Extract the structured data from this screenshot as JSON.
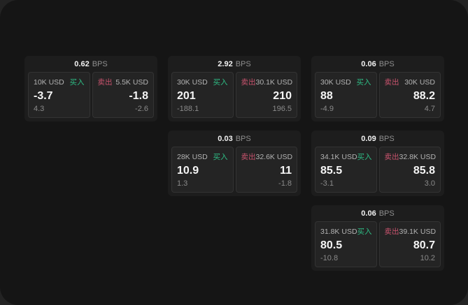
{
  "theme": {
    "buy_color": "#2EBD85",
    "sell_color": "#C9536E",
    "surface_color": "#151515",
    "card_color": "#1D1D1D",
    "tile_color": "#242424"
  },
  "cards": [
    {
      "bps_value": "0.62",
      "bps_label": "BPS",
      "buy": {
        "size": "10K USD",
        "side_label": "买入",
        "price": "-3.7",
        "delta": "4.3"
      },
      "sell": {
        "side_label": "卖出",
        "size": "5.5K USD",
        "price": "-1.8",
        "delta": "-2.6"
      },
      "grid": {
        "col": 0,
        "row": 0
      }
    },
    {
      "bps_value": "2.92",
      "bps_label": "BPS",
      "buy": {
        "size": "30K USD",
        "side_label": "买入",
        "price": "201",
        "delta": "-188.1"
      },
      "sell": {
        "side_label": "卖出",
        "size": "30.1K USD",
        "price": "210",
        "delta": "196.5"
      },
      "grid": {
        "col": 1,
        "row": 0
      }
    },
    {
      "bps_value": "0.06",
      "bps_label": "BPS",
      "buy": {
        "size": "30K USD",
        "side_label": "买入",
        "price": "88",
        "delta": "-4.9"
      },
      "sell": {
        "side_label": "卖出",
        "size": "30K USD",
        "price": "88.2",
        "delta": "4.7"
      },
      "grid": {
        "col": 2,
        "row": 0
      }
    },
    {
      "bps_value": "0.03",
      "bps_label": "BPS",
      "buy": {
        "size": "28K USD",
        "side_label": "买入",
        "price": "10.9",
        "delta": "1.3"
      },
      "sell": {
        "side_label": "卖出",
        "size": "32.6K USD",
        "price": "11",
        "delta": "-1.8"
      },
      "grid": {
        "col": 1,
        "row": 1
      }
    },
    {
      "bps_value": "0.09",
      "bps_label": "BPS",
      "buy": {
        "size": "34.1K USD",
        "side_label": "买入",
        "price": "85.5",
        "delta": "-3.1"
      },
      "sell": {
        "side_label": "卖出",
        "size": "32.8K USD",
        "price": "85.8",
        "delta": "3.0"
      },
      "grid": {
        "col": 2,
        "row": 1
      }
    },
    {
      "bps_value": "0.06",
      "bps_label": "BPS",
      "buy": {
        "size": "31.8K USD",
        "side_label": "买入",
        "price": "80.5",
        "delta": "-10.8"
      },
      "sell": {
        "side_label": "卖出",
        "size": "39.1K USD",
        "price": "80.7",
        "delta": "10.2"
      },
      "grid": {
        "col": 2,
        "row": 2
      }
    }
  ]
}
